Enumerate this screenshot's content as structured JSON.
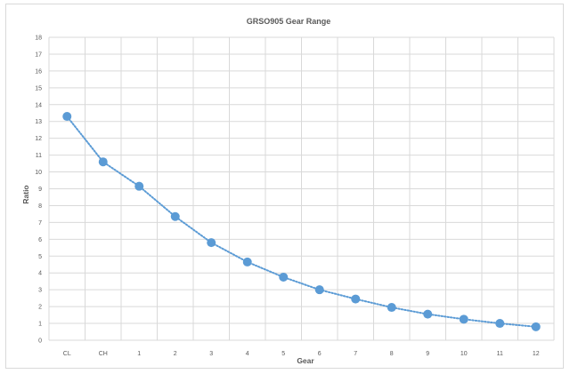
{
  "chart_data": {
    "type": "line",
    "title": "GRSO905 Gear Range",
    "xlabel": "Gear",
    "ylabel": "Ratio",
    "categories": [
      "CL",
      "CH",
      "1",
      "2",
      "3",
      "4",
      "5",
      "6",
      "7",
      "8",
      "9",
      "10",
      "11",
      "12"
    ],
    "series": [
      {
        "values": [
          13.3,
          10.6,
          9.15,
          7.35,
          5.8,
          4.65,
          3.75,
          3.0,
          2.45,
          1.95,
          1.55,
          1.25,
          1.0,
          0.8
        ],
        "color": "#5b9bd5",
        "line_style": "dotted",
        "markers": "circle"
      }
    ],
    "ylim": [
      0,
      18
    ],
    "yticks": [
      "0",
      "1",
      "2",
      "3",
      "4",
      "5",
      "6",
      "7",
      "8",
      "9",
      "10",
      "11",
      "12",
      "13",
      "14",
      "15",
      "16",
      "17",
      "18"
    ],
    "grid": true,
    "legend": "none",
    "gridline_color": "#d9d9d9"
  }
}
